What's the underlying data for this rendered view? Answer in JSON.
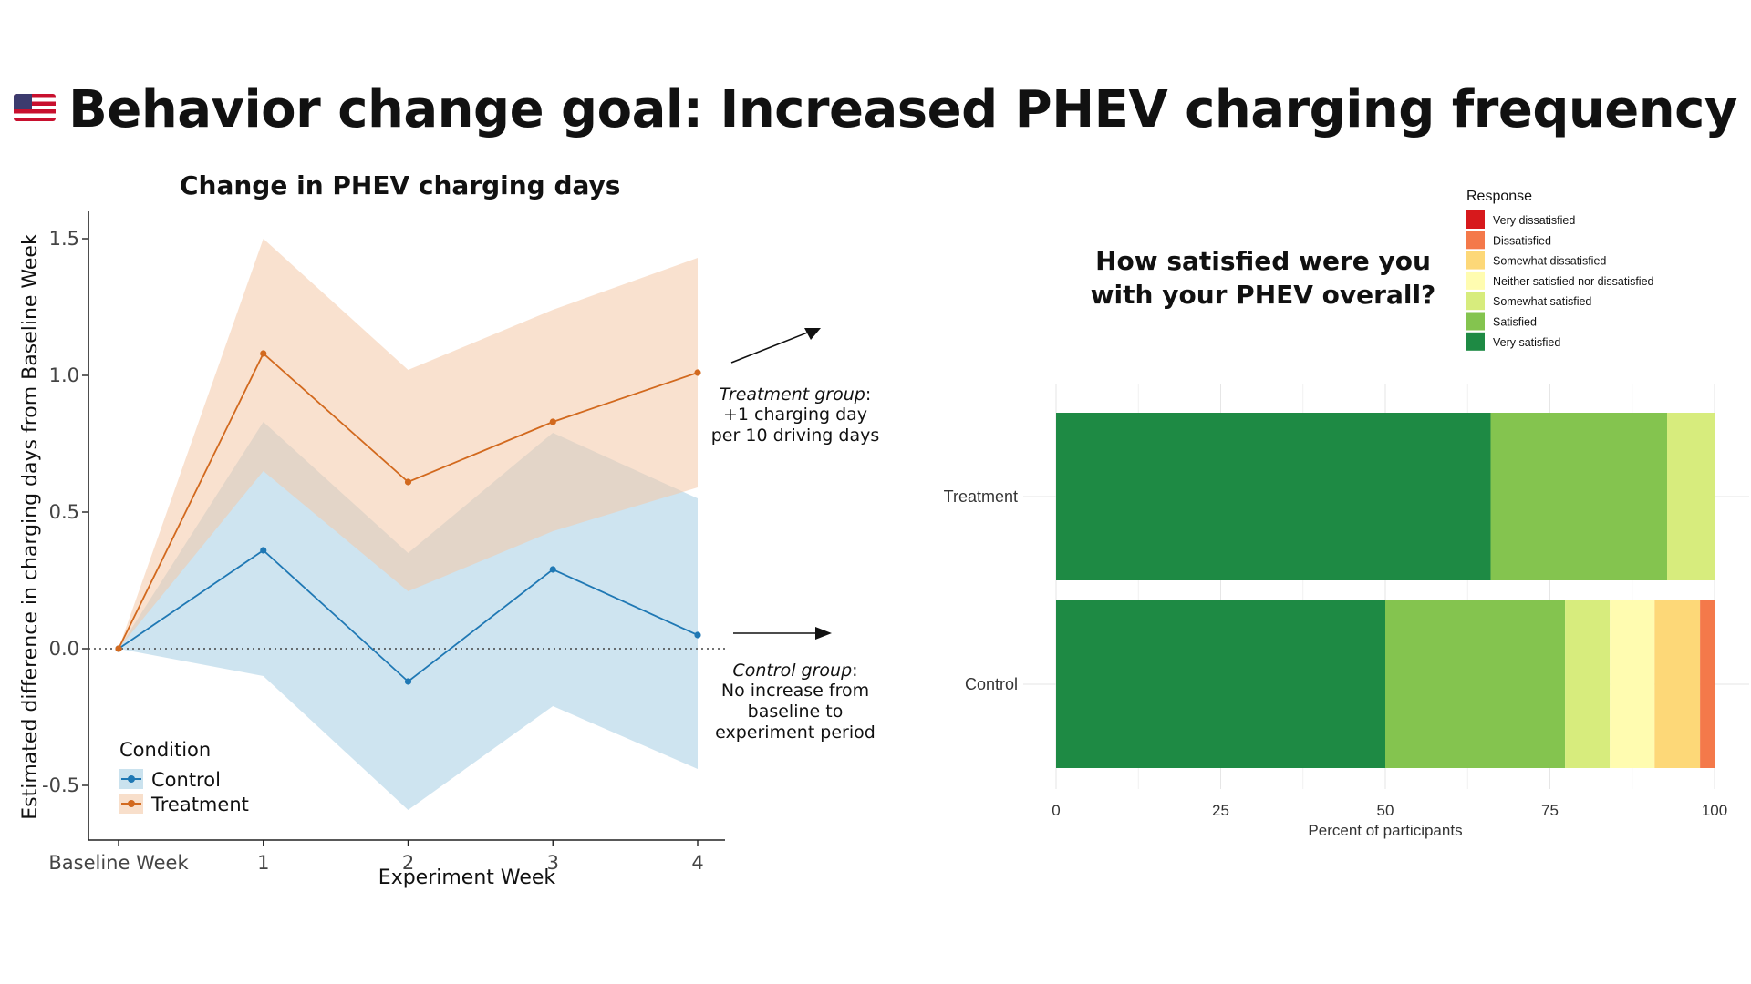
{
  "page": {
    "title": "Behavior change goal: Increased PHEV charging frequency",
    "flag_icon": "us-flag-icon"
  },
  "annotations": {
    "treatment": {
      "group": "Treatment group",
      "colon": ":",
      "line2": "+1 charging day",
      "line3": "per 10 driving days"
    },
    "control": {
      "group": "Control group",
      "colon": ":",
      "line2": "No increase from",
      "line3": "baseline to",
      "line4": "experiment period"
    }
  },
  "chart_data": [
    {
      "type": "line",
      "title": "Change in PHEV charging days",
      "xlabel": "Experiment Week",
      "ylabel": "Estimated difference in charging days from Baseline Week",
      "categories": [
        "Baseline Week",
        "1",
        "2",
        "3",
        "4"
      ],
      "ylim": [
        -0.7,
        1.6
      ],
      "yticks": [
        "-0.5",
        "0.0",
        "0.5",
        "1.0",
        "1.5"
      ],
      "ytick_values": [
        -0.5,
        0.0,
        0.5,
        1.0,
        1.5
      ],
      "reference_line": 0,
      "legend": {
        "title": "Condition",
        "position": "bottom-left"
      },
      "series": [
        {
          "name": "Control",
          "color": "#1f78b4",
          "band_color": "#a6cee3",
          "values": [
            0.0,
            0.36,
            -0.12,
            0.29,
            0.05
          ],
          "lower": [
            0.0,
            -0.1,
            -0.59,
            -0.21,
            -0.44
          ],
          "upper": [
            0.0,
            0.83,
            0.35,
            0.79,
            0.55
          ]
        },
        {
          "name": "Treatment",
          "color": "#d2691e",
          "band_color": "#f4c9a8",
          "values": [
            0.0,
            1.08,
            0.61,
            0.83,
            1.01
          ],
          "lower": [
            0.0,
            0.65,
            0.21,
            0.43,
            0.59
          ],
          "upper": [
            0.0,
            1.5,
            1.02,
            1.24,
            1.43
          ]
        }
      ]
    },
    {
      "type": "bar",
      "orientation": "horizontal-stacked",
      "title_line1": "How satisfied were you",
      "title_line2": "with your PHEV overall?",
      "xlabel": "Percent of participants",
      "xlim": [
        0,
        100
      ],
      "xticks": [
        "0",
        "25",
        "50",
        "75",
        "100"
      ],
      "xtick_values": [
        0,
        25,
        50,
        75,
        100
      ],
      "categories": [
        "Treatment",
        "Control"
      ],
      "legend": {
        "title": "Response",
        "position": "top-right",
        "items": [
          {
            "label": "Very dissatisfied",
            "color": "#d7191c"
          },
          {
            "label": "Dissatisfied",
            "color": "#f4794a"
          },
          {
            "label": "Somewhat dissatisfied",
            "color": "#fdd878"
          },
          {
            "label": "Neither satisfied nor dissatisfied",
            "color": "#fffcb0"
          },
          {
            "label": "Somewhat satisfied",
            "color": "#d7ec7d"
          },
          {
            "label": "Satisfied",
            "color": "#84c44f"
          },
          {
            "label": "Very satisfied",
            "color": "#1e8a44"
          }
        ]
      },
      "series": [
        {
          "name": "Very satisfied",
          "color": "#1e8a44",
          "values": [
            66.0,
            50.0
          ]
        },
        {
          "name": "Satisfied",
          "color": "#84c44f",
          "values": [
            26.8,
            27.3
          ]
        },
        {
          "name": "Somewhat satisfied",
          "color": "#d7ec7d",
          "values": [
            7.2,
            6.8
          ]
        },
        {
          "name": "Neither satisfied nor dissatisfied",
          "color": "#fffcb0",
          "values": [
            0,
            6.8
          ]
        },
        {
          "name": "Somewhat dissatisfied",
          "color": "#fdd878",
          "values": [
            0,
            6.9
          ]
        },
        {
          "name": "Dissatisfied",
          "color": "#f4794a",
          "values": [
            0,
            2.2
          ]
        },
        {
          "name": "Very dissatisfied",
          "color": "#d7191c",
          "values": [
            0,
            0
          ]
        }
      ]
    }
  ]
}
